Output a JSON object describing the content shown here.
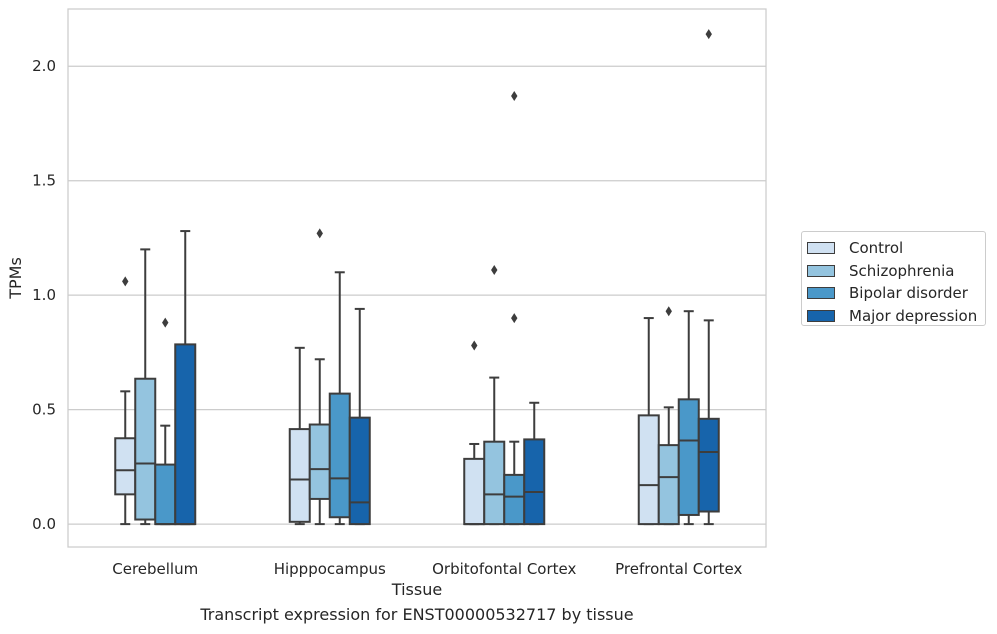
{
  "chart_data": {
    "type": "boxplot",
    "xlabel": "Tissue",
    "ylabel": "TPMs",
    "ylim": [
      -0.1,
      2.25
    ],
    "yticks": [
      0.0,
      0.5,
      1.0,
      1.5,
      2.0
    ],
    "ytick_labels": [
      "0.0",
      "0.5",
      "1.0",
      "1.5",
      "2.0"
    ],
    "grid": "horizontal",
    "legend_position": "right",
    "categories": [
      "Cerebellum",
      "Hipppocampus",
      "Orbitofontal Cortex",
      "Prefrontal Cortex"
    ],
    "series": [
      {
        "name": "Control",
        "color": "#d0e1f2",
        "boxes": [
          {
            "whislo": 0.0,
            "q1": 0.13,
            "med": 0.235,
            "q3": 0.375,
            "whishi": 0.58,
            "fliers": [
              1.06
            ]
          },
          {
            "whislo": 0.0,
            "q1": 0.01,
            "med": 0.195,
            "q3": 0.415,
            "whishi": 0.77,
            "fliers": []
          },
          {
            "whislo": 0.0,
            "q1": 0.0,
            "med": 0.0,
            "q3": 0.285,
            "whishi": 0.35,
            "fliers": [
              0.78
            ]
          },
          {
            "whislo": 0.0,
            "q1": 0.0,
            "med": 0.17,
            "q3": 0.475,
            "whishi": 0.9,
            "fliers": []
          }
        ]
      },
      {
        "name": "Schizophrenia",
        "color": "#94c4df",
        "boxes": [
          {
            "whislo": 0.0,
            "q1": 0.02,
            "med": 0.265,
            "q3": 0.635,
            "whishi": 1.2,
            "fliers": []
          },
          {
            "whislo": 0.0,
            "q1": 0.11,
            "med": 0.24,
            "q3": 0.435,
            "whishi": 0.72,
            "fliers": [
              1.27
            ]
          },
          {
            "whislo": 0.0,
            "q1": 0.0,
            "med": 0.13,
            "q3": 0.36,
            "whishi": 0.64,
            "fliers": [
              1.11
            ]
          },
          {
            "whislo": 0.0,
            "q1": 0.0,
            "med": 0.205,
            "q3": 0.345,
            "whishi": 0.51,
            "fliers": [
              0.93
            ]
          }
        ]
      },
      {
        "name": "Bipolar disorder",
        "color": "#4a98c9",
        "boxes": [
          {
            "whislo": 0.0,
            "q1": 0.0,
            "med": 0.0,
            "q3": 0.26,
            "whishi": 0.43,
            "fliers": [
              0.88
            ]
          },
          {
            "whislo": 0.0,
            "q1": 0.03,
            "med": 0.2,
            "q3": 0.57,
            "whishi": 1.1,
            "fliers": []
          },
          {
            "whislo": 0.0,
            "q1": 0.0,
            "med": 0.12,
            "q3": 0.215,
            "whishi": 0.36,
            "fliers": [
              0.9,
              1.87
            ]
          },
          {
            "whislo": 0.0,
            "q1": 0.04,
            "med": 0.365,
            "q3": 0.545,
            "whishi": 0.93,
            "fliers": []
          }
        ]
      },
      {
        "name": "Major depression",
        "color": "#1764ab",
        "boxes": [
          {
            "whislo": 0.0,
            "q1": 0.0,
            "med": 0.0,
            "q3": 0.785,
            "whishi": 1.28,
            "fliers": []
          },
          {
            "whislo": 0.0,
            "q1": 0.0,
            "med": 0.095,
            "q3": 0.465,
            "whishi": 0.94,
            "fliers": []
          },
          {
            "whislo": 0.0,
            "q1": 0.0,
            "med": 0.14,
            "q3": 0.37,
            "whishi": 0.53,
            "fliers": []
          },
          {
            "whislo": 0.0,
            "q1": 0.055,
            "med": 0.315,
            "q3": 0.46,
            "whishi": 0.89,
            "fliers": [
              2.14
            ]
          }
        ]
      }
    ]
  },
  "caption": "Transcript expression for ENST00000532717 by tissue"
}
